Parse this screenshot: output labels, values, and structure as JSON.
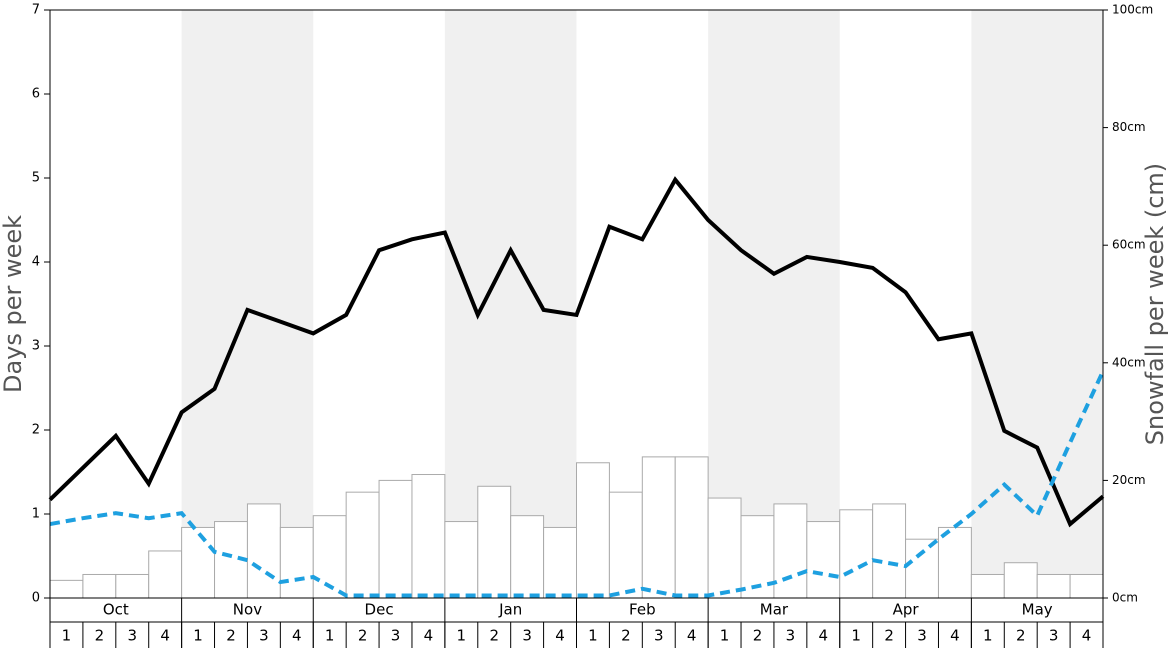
{
  "chart_data": {
    "type": "bar-line",
    "y_label": "Days per week",
    "y2_label": "Snowfall per week (cm)",
    "months": [
      "Oct",
      "Nov",
      "Dec",
      "Jan",
      "Feb",
      "Mar",
      "Apr",
      "May"
    ],
    "categories": [
      "1",
      "2",
      "3",
      "4",
      "1",
      "2",
      "3",
      "4",
      "1",
      "2",
      "3",
      "4",
      "1",
      "2",
      "3",
      "4",
      "1",
      "2",
      "3",
      "4",
      "1",
      "2",
      "3",
      "4",
      "1",
      "2",
      "3",
      "4",
      "1",
      "2",
      "3",
      "4"
    ],
    "x": [
      0,
      1,
      2,
      3,
      4,
      5,
      6,
      7,
      8,
      9,
      10,
      11,
      12,
      13,
      14,
      15,
      16,
      17,
      18,
      19,
      20,
      21,
      22,
      23,
      24,
      25,
      26,
      27,
      28,
      29,
      30,
      31,
      32
    ],
    "xlim": [
      0,
      32
    ],
    "ylim": [
      0,
      7
    ],
    "yticks": [
      0,
      1,
      2,
      3,
      4,
      5,
      6,
      7
    ],
    "y2lim": [
      0,
      100
    ],
    "y2ticks": [
      {
        "value": 0,
        "label": "0cm"
      },
      {
        "value": 20,
        "label": "20cm"
      },
      {
        "value": 40,
        "label": "40cm"
      },
      {
        "value": 60,
        "label": "60cm"
      },
      {
        "value": 80,
        "label": "80cm"
      },
      {
        "value": 100,
        "label": "100cm"
      }
    ],
    "shade_color": "#f0f0f0",
    "series": [
      {
        "type": "bar",
        "axis": "y2",
        "color": "#ffffff",
        "stroke": "#aaaaaa",
        "values": [
          3,
          4,
          4,
          8,
          12,
          13,
          16,
          12,
          14,
          18,
          20,
          21,
          13,
          19,
          14,
          12,
          23,
          18,
          24,
          24,
          17,
          14,
          16,
          13,
          15,
          16,
          10,
          12,
          4,
          6,
          4,
          4
        ]
      },
      {
        "type": "line",
        "color": "#000000",
        "dashed": false,
        "values": [
          1.17,
          1.55,
          1.93,
          1.36,
          2.21,
          2.49,
          3.43,
          3.29,
          3.15,
          3.37,
          4.14,
          4.27,
          4.35,
          3.37,
          4.14,
          3.43,
          3.37,
          4.42,
          4.27,
          4.98,
          4.5,
          4.14,
          3.86,
          4.06,
          4.0,
          3.93,
          3.64,
          3.08,
          3.15,
          1.99,
          1.79,
          0.88,
          1.21
        ]
      },
      {
        "type": "line",
        "color": "#1ea0e0",
        "dashed": true,
        "values": [
          0.88,
          0.95,
          1.01,
          0.95,
          1.01,
          0.55,
          0.45,
          0.19,
          0.25,
          0.03,
          0.03,
          0.03,
          0.03,
          0.03,
          0.03,
          0.03,
          0.03,
          0.03,
          0.11,
          0.03,
          0.03,
          0.1,
          0.18,
          0.32,
          0.25,
          0.45,
          0.38,
          0.7,
          1.0,
          1.35,
          0.98,
          1.85,
          2.7
        ]
      }
    ]
  }
}
